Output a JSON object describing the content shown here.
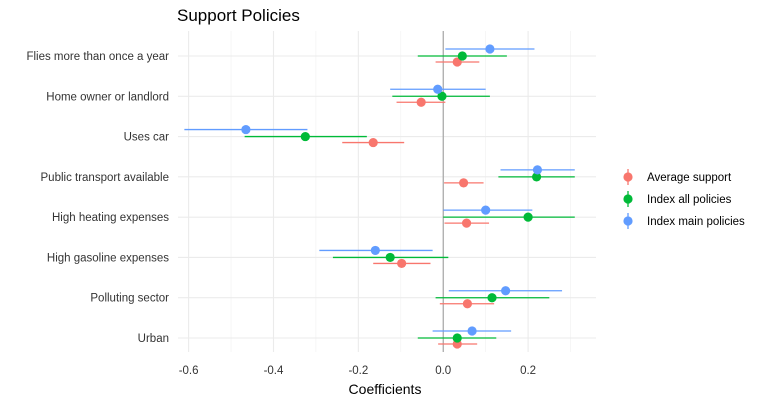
{
  "chart_data": {
    "type": "scatter",
    "title": "Support Policies",
    "xlabel": "Coefficients",
    "ylabel": "",
    "xlim": [
      -0.625,
      0.36
    ],
    "xticks": [
      -0.6,
      -0.4,
      -0.2,
      0.0,
      0.2
    ],
    "xtick_labels": [
      "-0.6",
      "-0.4",
      "-0.2",
      "0.0",
      "0.2"
    ],
    "reference_line": 0,
    "grid": true,
    "legend_position": "right",
    "categories": [
      "Flies more than once a year",
      "Home owner or landlord",
      "Uses car",
      "Public transport available",
      "High heating expenses",
      "High gasoline expenses",
      "Polluting sector",
      "Urban"
    ],
    "series": [
      {
        "name": "Average support",
        "color": "#F8766D",
        "estimates": [
          0.033,
          -0.052,
          -0.165,
          0.048,
          0.055,
          -0.098,
          0.057,
          0.033
        ],
        "lower": [
          -0.018,
          -0.11,
          -0.238,
          0.002,
          0.003,
          -0.165,
          -0.008,
          -0.012
        ],
        "upper": [
          0.085,
          0.005,
          -0.092,
          0.095,
          0.108,
          -0.03,
          0.12,
          0.08
        ]
      },
      {
        "name": "Index all policies",
        "color": "#00BA38",
        "estimates": [
          0.045,
          -0.003,
          -0.325,
          0.22,
          0.2,
          -0.125,
          0.115,
          0.033
        ],
        "lower": [
          -0.06,
          -0.12,
          -0.468,
          0.13,
          0.0,
          -0.26,
          -0.018,
          -0.06
        ],
        "upper": [
          0.15,
          0.11,
          -0.18,
          0.31,
          0.31,
          0.012,
          0.25,
          0.125
        ]
      },
      {
        "name": "Index main policies",
        "color": "#619CFF",
        "estimates": [
          0.11,
          -0.013,
          -0.465,
          0.222,
          0.1,
          -0.16,
          0.147,
          0.068
        ],
        "lower": [
          0.005,
          -0.125,
          -0.61,
          0.135,
          0.0,
          -0.292,
          0.013,
          -0.025
        ],
        "upper": [
          0.215,
          0.1,
          -0.32,
          0.31,
          0.21,
          -0.025,
          0.28,
          0.16
        ]
      }
    ]
  }
}
